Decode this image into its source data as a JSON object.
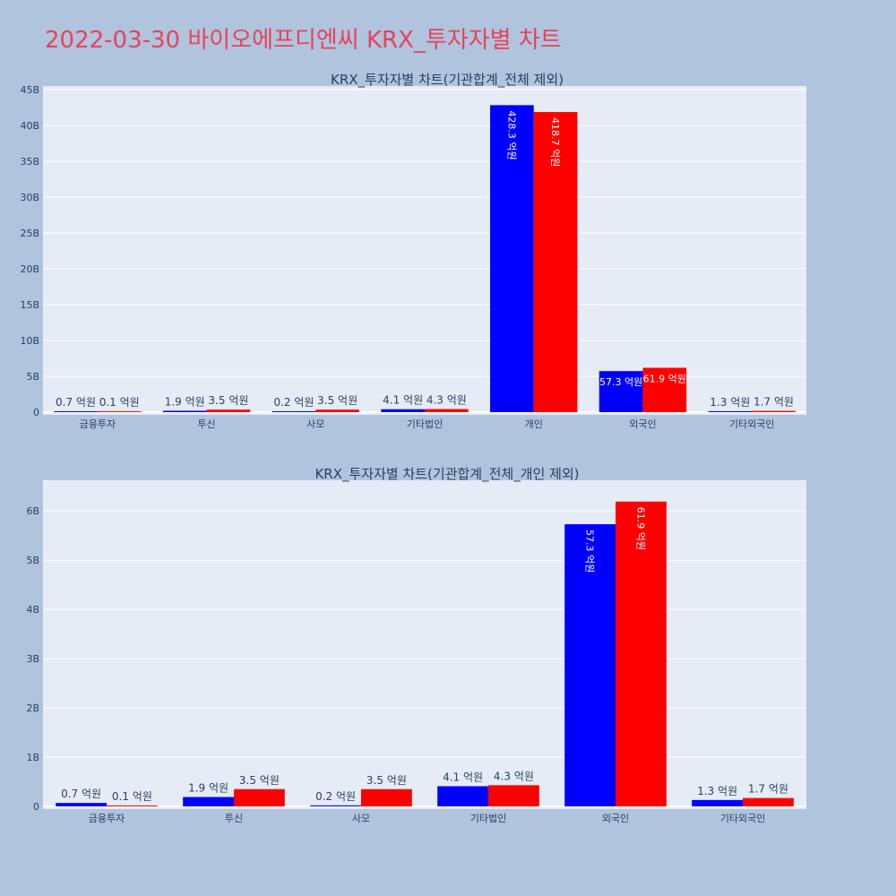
{
  "page_title": "2022-03-30 바이오에프디엔씨 KRX_투자자별 차트",
  "colors": {
    "series_a": "#0000ff",
    "series_b": "#ff0000",
    "background": "#b0c4de",
    "plot_bg": "#e5ecf6"
  },
  "chart_data": [
    {
      "type": "bar",
      "title": "KRX_투자자별 차트(기관합계_전체 제외)",
      "categories": [
        "금융투자",
        "투신",
        "사모",
        "기타법인",
        "개인",
        "외국인",
        "기타외국인"
      ],
      "ylim": [
        0,
        45000000000
      ],
      "yticks": [
        0,
        5000000000,
        10000000000,
        15000000000,
        20000000000,
        25000000000,
        30000000000,
        35000000000,
        40000000000,
        45000000000
      ],
      "ytick_labels": [
        "0",
        "5B",
        "10B",
        "15B",
        "20B",
        "25B",
        "30B",
        "35B",
        "40B",
        "45B"
      ],
      "grid": true,
      "series": [
        {
          "values": [
            70000000,
            190000000,
            20000000,
            410000000,
            42830000000,
            5730000000,
            130000000
          ],
          "labels": [
            "0.7 억원",
            "1.9 억원",
            "0.2 억원",
            "4.1 억원",
            "428.3 억원",
            "57.3 억원",
            "1.3 억원"
          ]
        },
        {
          "values": [
            10000000,
            350000000,
            350000000,
            430000000,
            41870000000,
            6190000000,
            170000000
          ],
          "labels": [
            "0.1 억원",
            "3.5 억원",
            "3.5 억원",
            "4.3 억원",
            "418.7 억원",
            "61.9 억원",
            "1.7 억원"
          ]
        }
      ]
    },
    {
      "type": "bar",
      "title": "KRX_투자자별 차트(기관합계_전체_개인 제외)",
      "categories": [
        "금융투자",
        "투신",
        "사모",
        "기타법인",
        "외국인",
        "기타외국인"
      ],
      "ylim": [
        0,
        6550000000
      ],
      "yticks": [
        0,
        1000000000,
        2000000000,
        3000000000,
        4000000000,
        5000000000,
        6000000000
      ],
      "ytick_labels": [
        "0",
        "1B",
        "2B",
        "3B",
        "4B",
        "5B",
        "6B"
      ],
      "grid": true,
      "series": [
        {
          "values": [
            70000000,
            190000000,
            20000000,
            410000000,
            5730000000,
            130000000
          ],
          "labels": [
            "0.7 억원",
            "1.9 억원",
            "0.2 억원",
            "4.1 억원",
            "57.3 억원",
            "1.3 억원"
          ]
        },
        {
          "values": [
            10000000,
            350000000,
            350000000,
            430000000,
            6190000000,
            170000000
          ],
          "labels": [
            "0.1 억원",
            "3.5 억원",
            "3.5 억원",
            "4.3 억원",
            "61.9 억원",
            "1.7 억원"
          ]
        }
      ]
    }
  ]
}
